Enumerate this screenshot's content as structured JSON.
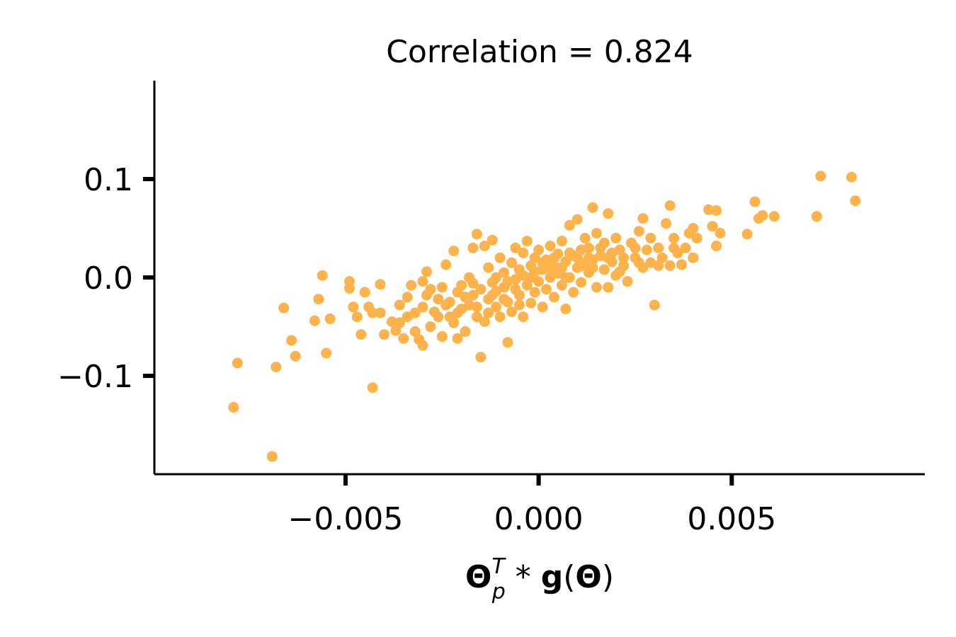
{
  "chart_data": {
    "type": "scatter",
    "title": "Correlation = 0.824",
    "xlabel": {
      "theta_p": "Θ",
      "sub": "p",
      "sup": "T",
      "op": " * ",
      "g": "g",
      "lparen": "(",
      "theta": "Θ",
      "rparen": ")"
    },
    "ylabel": "",
    "xlim": [
      -0.00995,
      0.01
    ],
    "ylim": [
      -0.2,
      0.2
    ],
    "xticks": [
      -0.005,
      0.0,
      0.005
    ],
    "xtick_labels": [
      "−0.005",
      "0.000",
      "0.005"
    ],
    "yticks": [
      -0.1,
      0.0,
      0.1
    ],
    "ytick_labels": [
      "−0.1",
      "0.0",
      "0.1"
    ],
    "grid": false,
    "marker_color": "#fdb24b",
    "series": [
      {
        "name": "points",
        "points": [
          [
            -0.0079,
            -0.132
          ],
          [
            -0.0078,
            -0.087
          ],
          [
            -0.0069,
            -0.182
          ],
          [
            -0.0068,
            -0.091
          ],
          [
            -0.0066,
            -0.031
          ],
          [
            -0.0064,
            -0.064
          ],
          [
            -0.0063,
            -0.08
          ],
          [
            -0.0058,
            -0.044
          ],
          [
            -0.0057,
            -0.022
          ],
          [
            -0.0056,
            0.002
          ],
          [
            -0.0055,
            -0.077
          ],
          [
            -0.0054,
            -0.042
          ],
          [
            -0.0049,
            -0.004
          ],
          [
            -0.0049,
            -0.011
          ],
          [
            -0.0048,
            -0.03
          ],
          [
            -0.0047,
            -0.04
          ],
          [
            -0.0046,
            -0.058
          ],
          [
            -0.0045,
            -0.015
          ],
          [
            -0.0044,
            -0.03
          ],
          [
            -0.0043,
            -0.036
          ],
          [
            -0.0043,
            -0.112
          ],
          [
            -0.0041,
            -0.036
          ],
          [
            -0.0041,
            -0.007
          ],
          [
            -0.004,
            -0.058
          ],
          [
            -0.0038,
            -0.045
          ],
          [
            -0.0037,
            -0.054
          ],
          [
            -0.0036,
            -0.046
          ],
          [
            -0.0035,
            -0.062
          ],
          [
            -0.0034,
            -0.04
          ],
          [
            -0.0034,
            -0.02
          ],
          [
            -0.0033,
            -0.008
          ],
          [
            -0.0032,
            -0.055
          ],
          [
            -0.0031,
            -0.063
          ],
          [
            -0.003,
            -0.03
          ],
          [
            -0.003,
            -0.004
          ],
          [
            -0.003,
            -0.069
          ],
          [
            -0.0029,
            0.006
          ],
          [
            -0.0029,
            -0.018
          ],
          [
            -0.0028,
            -0.05
          ],
          [
            -0.0027,
            -0.035
          ],
          [
            -0.0026,
            -0.022
          ],
          [
            -0.0025,
            -0.01
          ],
          [
            -0.0025,
            -0.06
          ],
          [
            -0.0024,
            0.013
          ],
          [
            -0.0023,
            -0.04
          ],
          [
            -0.0023,
            -0.025
          ],
          [
            -0.0022,
            -0.046
          ],
          [
            -0.0022,
            0.027
          ],
          [
            -0.0021,
            -0.015
          ],
          [
            -0.0021,
            -0.062
          ],
          [
            -0.002,
            -0.032
          ],
          [
            -0.002,
            -0.008
          ],
          [
            -0.0019,
            -0.055
          ],
          [
            -0.0018,
            0.0
          ],
          [
            -0.0018,
            -0.028
          ],
          [
            -0.0017,
            -0.018
          ],
          [
            -0.0017,
            0.03
          ],
          [
            -0.0016,
            -0.04
          ],
          [
            -0.0016,
            0.044
          ],
          [
            -0.0015,
            -0.081
          ],
          [
            -0.0015,
            -0.012
          ],
          [
            -0.0014,
            0.032
          ],
          [
            -0.0014,
            -0.045
          ],
          [
            -0.0013,
            -0.022
          ],
          [
            -0.0013,
            0.01
          ],
          [
            -0.0012,
            -0.005
          ],
          [
            -0.0012,
            0.038
          ],
          [
            -0.0011,
            -0.03
          ],
          [
            -0.0011,
            -0.014
          ],
          [
            -0.001,
            0.02
          ],
          [
            -0.001,
            -0.04
          ],
          [
            -0.0009,
            -0.01
          ],
          [
            -0.0009,
            0.005
          ],
          [
            -0.0008,
            -0.025
          ],
          [
            -0.0008,
            -0.066
          ],
          [
            -0.0007,
            0.015
          ],
          [
            -0.0007,
            -0.035
          ],
          [
            -0.0006,
            -0.002
          ],
          [
            -0.0006,
            0.03
          ],
          [
            -0.0005,
            -0.018
          ],
          [
            -0.0005,
            0.008
          ],
          [
            -0.0004,
            -0.04
          ],
          [
            -0.0004,
            0.025
          ],
          [
            -0.0003,
            -0.008
          ],
          [
            -0.0003,
            0.037
          ],
          [
            -0.0002,
            -0.026
          ],
          [
            -0.0002,
            0.012
          ],
          [
            -0.0001,
            -0.015
          ],
          [
            -0.0001,
            0.02
          ],
          [
            0.0,
            -0.004
          ],
          [
            0.0,
            0.028
          ],
          [
            0.0001,
            -0.03
          ],
          [
            0.0001,
            0.008
          ],
          [
            0.0002,
            -0.012
          ],
          [
            0.0002,
            0.018
          ],
          [
            0.0003,
            0.0
          ],
          [
            0.0003,
            0.032
          ],
          [
            0.0004,
            -0.02
          ],
          [
            0.0004,
            0.012
          ],
          [
            0.0005,
            0.004
          ],
          [
            0.0005,
            0.024
          ],
          [
            0.0006,
            -0.008
          ],
          [
            0.0006,
            0.037
          ],
          [
            0.0007,
            0.016
          ],
          [
            0.0007,
            -0.032
          ],
          [
            0.0008,
            0.0
          ],
          [
            0.0008,
            0.053
          ],
          [
            0.0009,
            0.022
          ],
          [
            0.0009,
            -0.015
          ],
          [
            0.001,
            0.01
          ],
          [
            0.001,
            0.059
          ],
          [
            0.0011,
            0.028
          ],
          [
            0.0011,
            -0.005
          ],
          [
            0.0012,
            0.015
          ],
          [
            0.0012,
            0.04
          ],
          [
            0.0013,
            0.005
          ],
          [
            0.0013,
            0.03
          ],
          [
            0.0014,
            0.071
          ],
          [
            0.0014,
            0.018
          ],
          [
            0.0015,
            -0.01
          ],
          [
            0.0015,
            0.045
          ],
          [
            0.0016,
            0.022
          ],
          [
            0.0017,
            0.008
          ],
          [
            0.0017,
            0.035
          ],
          [
            0.0018,
            -0.01
          ],
          [
            0.0018,
            0.065
          ],
          [
            0.0019,
            0.016
          ],
          [
            0.002,
            0.04
          ],
          [
            0.002,
            0.002
          ],
          [
            0.0021,
            0.028
          ],
          [
            0.0022,
            0.012
          ],
          [
            0.0023,
            -0.004
          ],
          [
            0.0024,
            0.035
          ],
          [
            0.0025,
            0.02
          ],
          [
            0.0026,
            0.047
          ],
          [
            0.0027,
            0.01
          ],
          [
            0.0027,
            0.06
          ],
          [
            0.0028,
            0.028
          ],
          [
            0.0029,
            0.015
          ],
          [
            0.003,
            -0.028
          ],
          [
            0.0031,
            0.03
          ],
          [
            0.0032,
            0.02
          ],
          [
            0.0033,
            0.055
          ],
          [
            0.0034,
            0.073
          ],
          [
            0.0034,
            0.012
          ],
          [
            0.0035,
            0.04
          ],
          [
            0.0036,
            0.025
          ],
          [
            0.0037,
            0.013
          ],
          [
            0.0038,
            0.03
          ],
          [
            0.0039,
            0.045
          ],
          [
            0.004,
            0.02
          ],
          [
            0.0041,
            0.04
          ],
          [
            0.0044,
            0.069
          ],
          [
            0.0045,
            0.052
          ],
          [
            0.0046,
            0.032
          ],
          [
            0.0046,
            0.068
          ],
          [
            0.0047,
            0.045
          ],
          [
            0.0054,
            0.044
          ],
          [
            0.0056,
            0.077
          ],
          [
            0.0057,
            0.06
          ],
          [
            0.0058,
            0.063
          ],
          [
            0.0061,
            0.062
          ],
          [
            0.0072,
            0.062
          ],
          [
            0.0073,
            0.103
          ],
          [
            0.0081,
            0.102
          ],
          [
            0.0082,
            0.078
          ],
          [
            -0.0026,
            -0.04
          ],
          [
            -0.0024,
            -0.028
          ],
          [
            -0.0019,
            -0.02
          ],
          [
            -0.0016,
            -0.03
          ],
          [
            -0.0013,
            -0.036
          ],
          [
            -0.0011,
            0.0
          ],
          [
            -0.0009,
            -0.022
          ],
          [
            -0.0006,
            -0.012
          ],
          [
            -0.0004,
            0.002
          ],
          [
            -0.0002,
            0.0
          ],
          [
            0.0001,
            0.015
          ],
          [
            0.0004,
            0.02
          ],
          [
            0.0006,
            0.01
          ],
          [
            0.0008,
            0.025
          ],
          [
            0.0011,
            0.012
          ],
          [
            0.0013,
            0.02
          ],
          [
            0.0016,
            0.03
          ],
          [
            0.0019,
            0.025
          ],
          [
            0.0022,
            0.02
          ],
          [
            0.0025,
            0.03
          ],
          [
            -0.0036,
            -0.028
          ],
          [
            -0.0032,
            -0.036
          ],
          [
            -0.0028,
            -0.012
          ],
          [
            -0.0021,
            -0.036
          ],
          [
            -0.0017,
            -0.006
          ],
          [
            -0.0012,
            -0.018
          ],
          [
            -0.0008,
            -0.004
          ],
          [
            -0.0005,
            -0.028
          ],
          [
            -0.0001,
            0.006
          ],
          [
            0.0003,
            0.01
          ],
          [
            0.0007,
            0.0
          ],
          [
            0.001,
            0.02
          ],
          [
            0.0014,
            0.01
          ],
          [
            0.0018,
            0.02
          ],
          [
            0.0021,
            0.006
          ],
          [
            0.0029,
            0.04
          ],
          [
            0.0035,
            0.03
          ],
          [
            0.004,
            0.05
          ],
          [
            0.0031,
            0.012
          ],
          [
            0.0026,
            0.015
          ]
        ]
      }
    ]
  }
}
